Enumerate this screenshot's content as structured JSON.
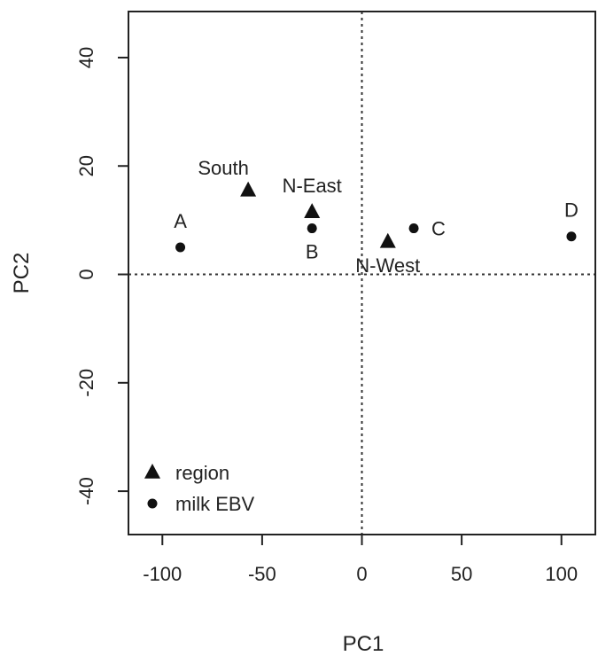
{
  "chart_data": {
    "type": "scatter",
    "xlabel": "PC1",
    "ylabel": "PC2",
    "xlim": [
      -117,
      117
    ],
    "ylim": [
      -48,
      48.5
    ],
    "x_ticks": [
      -100,
      -50,
      0,
      50,
      100
    ],
    "x_tick_labels": [
      "-100",
      "-50",
      "0",
      "50",
      "100"
    ],
    "y_ticks": [
      -40,
      -20,
      0,
      20,
      40
    ],
    "y_tick_labels": [
      "-40",
      "-20",
      "0",
      "20",
      "40"
    ],
    "reference_lines": {
      "x": 0,
      "y": 0,
      "style": "dotted"
    },
    "legend_position": "bottom-left",
    "series": [
      {
        "name": "region",
        "marker": "triangle",
        "points": [
          {
            "label": "South",
            "x": -57,
            "y": 15.5,
            "label_pos": "above-left"
          },
          {
            "label": "N-East",
            "x": -25,
            "y": 11.5,
            "label_pos": "above"
          },
          {
            "label": "N-West",
            "x": 13,
            "y": 6,
            "label_pos": "below"
          }
        ]
      },
      {
        "name": "milk EBV",
        "marker": "circle",
        "points": [
          {
            "label": "A",
            "x": -91,
            "y": 5,
            "label_pos": "above"
          },
          {
            "label": "B",
            "x": -25,
            "y": 8.5,
            "label_pos": "below"
          },
          {
            "label": "C",
            "x": 26,
            "y": 8.5,
            "label_pos": "right"
          },
          {
            "label": "D",
            "x": 105,
            "y": 7,
            "label_pos": "above"
          }
        ]
      }
    ],
    "colors": {
      "marker": "#111111",
      "axis": "#222222",
      "refline": "#333333"
    }
  }
}
